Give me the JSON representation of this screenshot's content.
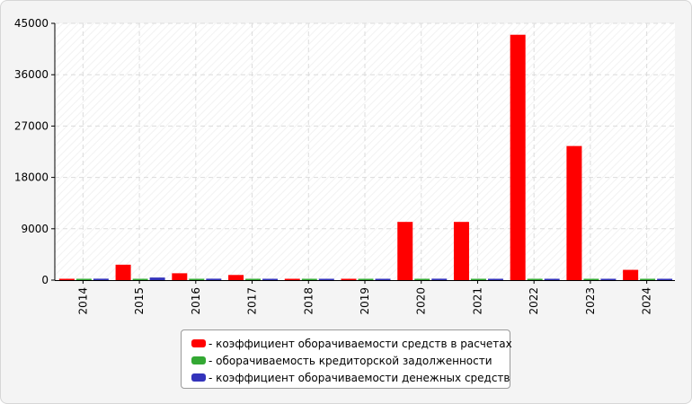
{
  "chart_data": {
    "type": "bar",
    "categories": [
      "2014",
      "2015",
      "2016",
      "2017",
      "2018",
      "2019",
      "2020",
      "2021",
      "2022",
      "2023",
      "2024"
    ],
    "series": [
      {
        "name": "- коэффициент оборачиваемости средств в расчетах",
        "color": "#ff0000",
        "values": [
          150,
          2700,
          1200,
          900,
          150,
          150,
          10200,
          10200,
          43000,
          23500,
          1800
        ]
      },
      {
        "name": "- оборачиваемость кредиторской задолженности",
        "color": "#33a833",
        "values": [
          60,
          100,
          100,
          60,
          60,
          60,
          100,
          100,
          100,
          100,
          100
        ]
      },
      {
        "name": "- коэффициент оборачиваемости денежных средств",
        "color": "#3333bb",
        "values": [
          250,
          450,
          250,
          100,
          100,
          100,
          250,
          100,
          100,
          100,
          100
        ]
      }
    ],
    "ylim": [
      0,
      45000
    ],
    "yticks": [
      0,
      9000,
      18000,
      27000,
      36000,
      45000
    ],
    "grid": true,
    "legend_position": "bottom",
    "title": "",
    "xlabel": "",
    "ylabel": ""
  }
}
